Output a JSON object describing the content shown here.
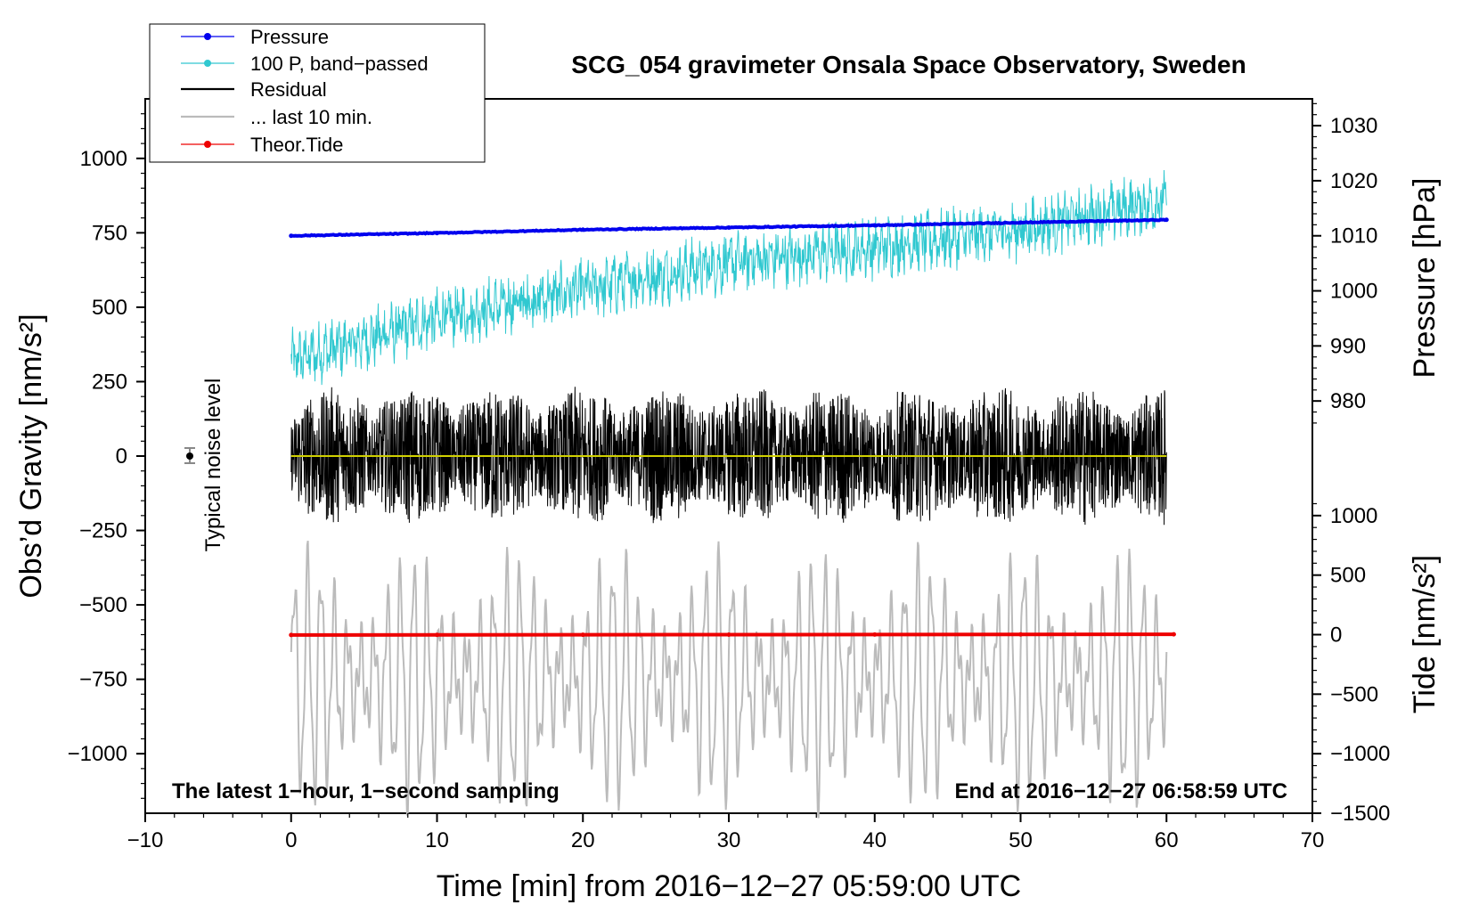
{
  "chart_data": {
    "type": "line",
    "title": "SCG_054 gravimeter Onsala Space Observatory, Sweden",
    "xlabel": "Time [min] from 2016−12−27 05:59:00 UTC",
    "ylabel_left": "Obs’d Gravity [nm/s²]",
    "ylabel_right_pressure": "Pressure [hPa]",
    "ylabel_right_tide": "Tide [nm/s²]",
    "xlim": [
      -10,
      70
    ],
    "ylim_left": [
      -1200,
      1200
    ],
    "x_ticks": [
      -10,
      0,
      10,
      20,
      30,
      40,
      50,
      60,
      70
    ],
    "x_tick_labels": [
      "−10",
      "0",
      "10",
      "20",
      "30",
      "40",
      "50",
      "60",
      "70"
    ],
    "y_left_ticks": [
      1000,
      750,
      500,
      250,
      0,
      -250,
      -500,
      -750,
      -1000
    ],
    "y_left_tick_labels": [
      "1000",
      "750",
      "500",
      "250",
      "0",
      "−250",
      "−500",
      "−750",
      "−1000"
    ],
    "pressure_axis": {
      "ticks": [
        1030,
        1020,
        1010,
        1000,
        990,
        980
      ],
      "tick_labels": [
        "1030",
        "1020",
        "1010",
        "1000",
        "990",
        "980"
      ],
      "gravity_at_1010": 740,
      "gravity_per_hPa": 18.5
    },
    "tide_axis": {
      "ticks": [
        1000,
        500,
        0,
        -500,
        -1000,
        -1500
      ],
      "tick_labels": [
        "1000",
        "500",
        "0",
        "−500",
        "−1000",
        "−1500"
      ],
      "gravity_at_0": -600,
      "gravity_per_unit": 0.4
    },
    "series": [
      {
        "name": "Pressure",
        "unit": "hPa",
        "x": [
          0,
          10,
          20,
          30,
          40,
          50,
          60
        ],
        "values": [
          1010.0,
          1010.5,
          1011.1,
          1011.5,
          1011.9,
          1012.4,
          1012.9
        ]
      },
      {
        "name": "100 P, band−passed",
        "unit": "nm/s²",
        "x": [
          0,
          10,
          20,
          30,
          40,
          50,
          60
        ],
        "values": [
          320,
          460,
          560,
          650,
          700,
          760,
          860
        ]
      },
      {
        "name": "Residual",
        "unit": "nm/s²",
        "x": [
          0,
          10,
          20,
          30,
          40,
          50,
          60
        ],
        "values": [
          0,
          0,
          0,
          0,
          0,
          0,
          0
        ],
        "amplitude_approx": 300
      },
      {
        "name": "... last 10 min.",
        "unit": "nm/s²",
        "x": [
          0,
          10,
          20,
          30,
          40,
          50,
          60
        ],
        "values": [
          -750,
          -750,
          -750,
          -750,
          -750,
          -750,
          -750
        ],
        "amplitude_approx": 380
      },
      {
        "name": "Theor.Tide",
        "unit": "nm/s²",
        "x": [
          0,
          10,
          20,
          30,
          40,
          50,
          60.5
        ],
        "values": [
          -3,
          -2,
          -1,
          0,
          1,
          2,
          3
        ]
      }
    ],
    "noise_marker": {
      "x": -7,
      "y": 0,
      "label": "Typical noise level"
    },
    "annotations": [
      "The latest 1−hour, 1−second sampling",
      "End at 2016−12−27 06:58:59 UTC"
    ],
    "legend_position": "top-left"
  },
  "colors": {
    "pressure": "#0000ee",
    "band_passed": "#30c8d0",
    "residual": "#000000",
    "last10": "#bbbbbb",
    "tide": "#ee0000",
    "zero_line": "#d0d000"
  }
}
